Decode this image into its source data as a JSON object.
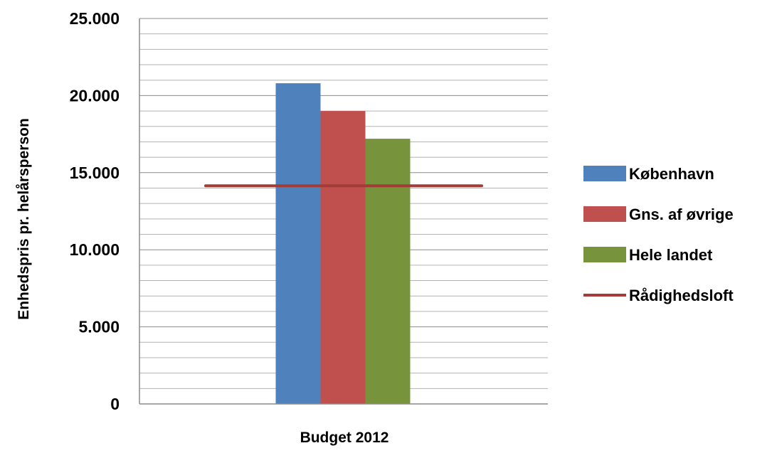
{
  "chart_data": {
    "type": "bar",
    "ylabel": "Enhedspris pr. helårsperson",
    "categories": [
      "Budget 2012"
    ],
    "ylim": [
      0,
      25000
    ],
    "major_step": 5000,
    "minor_step": 1000,
    "y_ticks": [
      "0",
      "5.000",
      "10.000",
      "15.000",
      "20.000",
      "25.000"
    ],
    "grid": true,
    "legend_position": "right",
    "series": [
      {
        "name": "København",
        "values": [
          20800
        ],
        "color": "#4F81BD"
      },
      {
        "name": "Gns. af øvrige",
        "values": [
          19000
        ],
        "color": "#C0504D"
      },
      {
        "name": "Hele landet",
        "values": [
          17200
        ],
        "color": "#77933C"
      }
    ],
    "lines": [
      {
        "name": "Rådighedsloft",
        "value": 14150,
        "color": "#A33B37"
      }
    ]
  }
}
